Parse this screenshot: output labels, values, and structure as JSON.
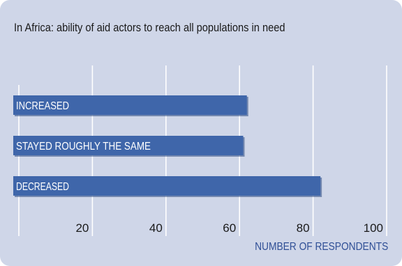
{
  "chart_data": {
    "type": "bar",
    "orientation": "horizontal",
    "title": "In Africa: ability of aid actors to reach all populations in need",
    "xlabel": "NUMBER OF RESPONDENTS",
    "ylabel": "",
    "categories": [
      "INCREASED",
      "STAYED ROUGHLY THE SAME",
      "DECREASED"
    ],
    "values": [
      62,
      61,
      82
    ],
    "xlim": [
      0,
      100
    ],
    "xticks": [
      20,
      40,
      60,
      80,
      100
    ],
    "grid": true,
    "legend": "none",
    "colors": {
      "panel": "#cfd6e8",
      "bar": "#3f66aa",
      "bar_shadow": "#2c4a80",
      "grid": "#ffffff",
      "bar_label": "#ffffff",
      "tick_label": "#1a1a1a",
      "xlabel": "#2f4f96"
    }
  }
}
